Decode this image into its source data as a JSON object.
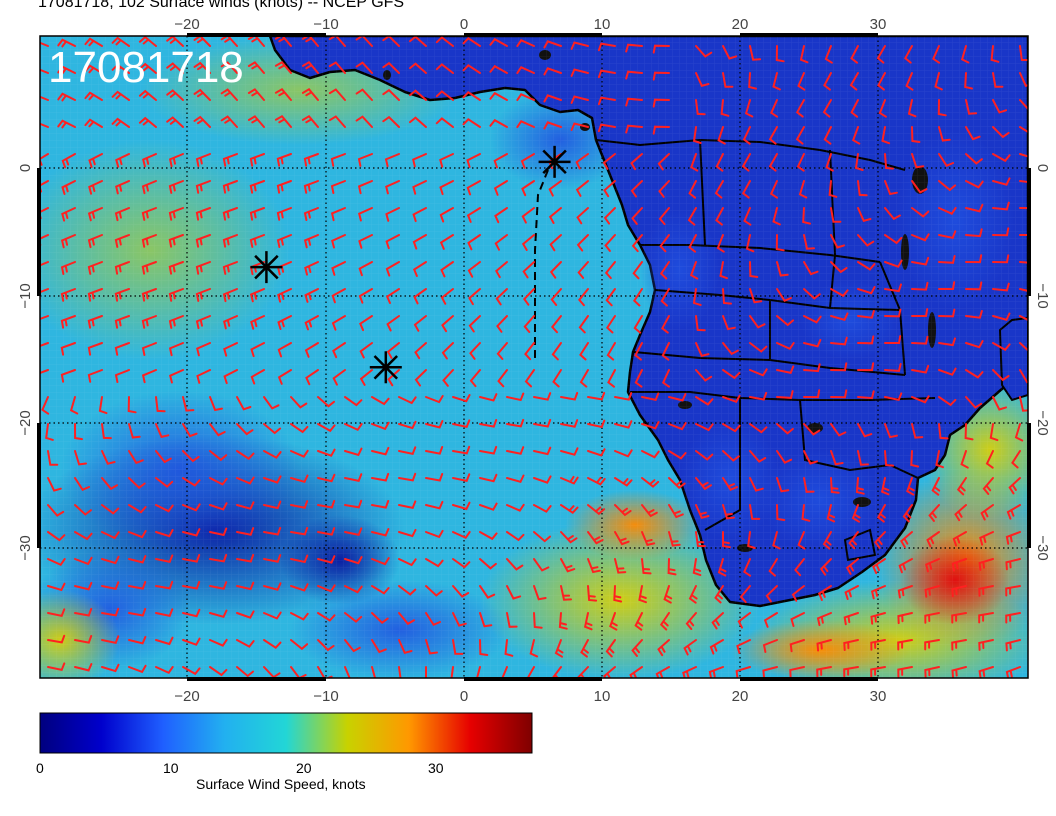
{
  "header": {
    "title": "17081718, 102 Surface winds (knots) -- NCEP GFS"
  },
  "map": {
    "stamp": "17081718",
    "lon_ticks": [
      "−20",
      "−10",
      "0",
      "10",
      "20",
      "30"
    ],
    "lat_ticks": [
      "0",
      "−10",
      "−20",
      "−30"
    ],
    "region": "South Atlantic Ocean and southern Africa",
    "lon_range": [
      -31,
      41
    ],
    "lat_range": [
      -40,
      10
    ],
    "markers": [
      {
        "name": "marker-1",
        "lon": 6.5,
        "lat": 0.2
      },
      {
        "name": "marker-2",
        "lon": -14.5,
        "lat": -8.0
      },
      {
        "name": "marker-3",
        "lon": -5.8,
        "lat": -15.8
      }
    ]
  },
  "colorbar": {
    "label": "Surface Wind Speed, knots",
    "ticks": [
      "0",
      "10",
      "20",
      "30"
    ],
    "range": [
      0,
      37
    ],
    "stops": [
      "#00007f",
      "#0000cc",
      "#1f5fff",
      "#22b0f0",
      "#22d6d6",
      "#c8d200",
      "#ff9800",
      "#e60000",
      "#7f0000"
    ]
  },
  "colors": {
    "ocean_base": "#2fb6e0",
    "land_base": "#1936c8",
    "barbs": "#ff2020",
    "coast": "#000000",
    "calm": "#0a1aa0",
    "strong": "#e02c10"
  }
}
